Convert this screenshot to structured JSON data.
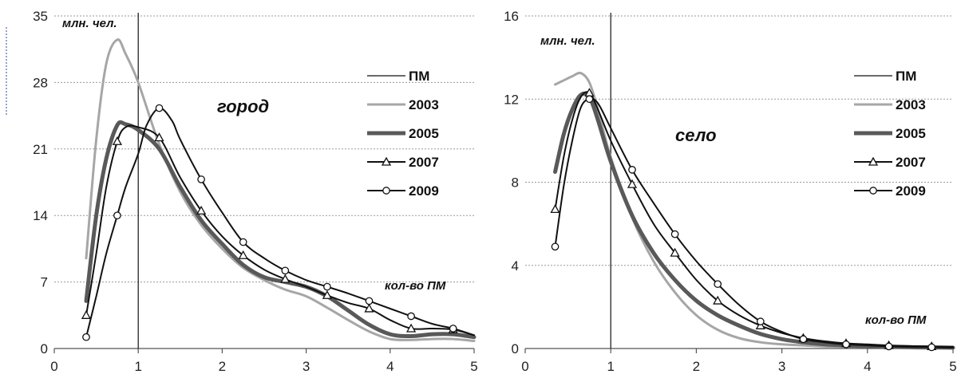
{
  "chart_data": [
    {
      "type": "line",
      "region_label": "город",
      "ylabel": "млн. чел.",
      "xlabel": "кол-во ПМ",
      "xlim": [
        0,
        5
      ],
      "ylim": [
        0,
        35
      ],
      "xticks": [
        "0",
        "1",
        "2",
        "3",
        "4",
        "5"
      ],
      "yticks": [
        "0",
        "7",
        "14",
        "21",
        "28",
        "35"
      ],
      "grid": "horizontal dotted",
      "legend_position": "right",
      "reference_line": {
        "name": "ПМ",
        "x": 1
      },
      "series": [
        {
          "name": "2003",
          "color": "#a6a6a6",
          "width": 3,
          "marker": "none",
          "x": [
            0.38,
            0.5,
            0.62,
            0.75,
            0.85,
            1.0,
            1.25,
            1.5,
            1.75,
            2.0,
            2.25,
            2.5,
            2.75,
            3.0,
            3.25,
            3.5,
            3.75,
            4.0,
            4.25,
            4.5,
            4.75,
            5.0
          ],
          "y": [
            9.5,
            22.0,
            30.0,
            32.5,
            31.0,
            28.0,
            21.5,
            16.5,
            13.0,
            10.5,
            8.5,
            7.2,
            6.2,
            5.5,
            4.3,
            3.0,
            1.8,
            1.0,
            0.9,
            1.0,
            1.0,
            0.8
          ]
        },
        {
          "name": "2005",
          "color": "#595959",
          "width": 5,
          "marker": "none",
          "x": [
            0.38,
            0.5,
            0.62,
            0.75,
            0.85,
            1.0,
            1.25,
            1.5,
            1.75,
            2.0,
            2.25,
            2.5,
            2.75,
            3.0,
            3.25,
            3.5,
            3.75,
            4.0,
            4.25,
            4.5,
            4.75,
            5.0
          ],
          "y": [
            5.0,
            14.0,
            20.0,
            23.5,
            23.6,
            23.0,
            21.0,
            17.0,
            13.5,
            11.0,
            8.8,
            7.5,
            7.0,
            6.5,
            5.5,
            4.0,
            2.5,
            1.5,
            1.3,
            1.5,
            1.5,
            1.2
          ]
        },
        {
          "name": "2007",
          "color": "#111111",
          "width": 2,
          "marker": "triangle",
          "x": [
            0.38,
            0.5,
            0.62,
            0.75,
            0.85,
            1.0,
            1.25,
            1.5,
            1.75,
            2.0,
            2.25,
            2.5,
            2.75,
            3.0,
            3.25,
            3.5,
            3.75,
            4.0,
            4.25,
            4.5,
            4.75,
            5.0
          ],
          "y": [
            3.5,
            10.0,
            17.0,
            21.8,
            23.3,
            23.3,
            22.2,
            18.0,
            14.5,
            11.8,
            9.8,
            8.3,
            7.3,
            6.5,
            5.6,
            4.8,
            4.2,
            3.0,
            2.1,
            2.1,
            2.0,
            1.4
          ],
          "markers_x": [
            0.38,
            0.75,
            1.25,
            1.75,
            2.25,
            2.75,
            3.25,
            3.75,
            4.25,
            4.75
          ],
          "markers_y": [
            3.5,
            21.8,
            22.2,
            14.5,
            9.8,
            7.3,
            5.6,
            4.2,
            2.1,
            2.0
          ]
        },
        {
          "name": "2009",
          "color": "#111111",
          "width": 2,
          "marker": "circle",
          "x": [
            0.38,
            0.5,
            0.62,
            0.75,
            0.85,
            1.0,
            1.1,
            1.25,
            1.4,
            1.5,
            1.75,
            2.0,
            2.25,
            2.5,
            2.75,
            3.0,
            3.25,
            3.5,
            3.75,
            4.0,
            4.25,
            4.5,
            4.75,
            5.0
          ],
          "y": [
            1.2,
            5.5,
            10.0,
            14.0,
            17.0,
            20.5,
            23.5,
            25.3,
            24.0,
            22.0,
            17.8,
            14.3,
            11.2,
            9.5,
            8.2,
            7.2,
            6.5,
            5.8,
            5.0,
            4.2,
            3.4,
            2.6,
            2.1,
            1.4
          ],
          "markers_x": [
            0.38,
            0.75,
            1.25,
            1.75,
            2.25,
            2.75,
            3.25,
            3.75,
            4.25,
            4.75
          ],
          "markers_y": [
            1.2,
            14.0,
            25.3,
            17.8,
            11.2,
            8.2,
            6.5,
            5.0,
            3.4,
            2.1
          ]
        }
      ]
    },
    {
      "type": "line",
      "region_label": "село",
      "ylabel": "млн. чел.",
      "xlabel": "кол-во ПМ",
      "xlim": [
        0,
        5
      ],
      "ylim": [
        0,
        16
      ],
      "xticks": [
        "0",
        "1",
        "2",
        "3",
        "4",
        "5"
      ],
      "yticks": [
        "0",
        "4",
        "8",
        "12",
        "16"
      ],
      "grid": "horizontal dotted",
      "legend_position": "right",
      "reference_line": {
        "name": "ПМ",
        "x": 1
      },
      "series": [
        {
          "name": "2003",
          "color": "#a6a6a6",
          "width": 3,
          "marker": "none",
          "x": [
            0.35,
            0.45,
            0.55,
            0.65,
            0.75,
            0.85,
            1.0,
            1.25,
            1.5,
            1.75,
            2.0,
            2.25,
            2.5,
            2.75,
            3.0,
            3.25,
            3.5,
            3.75,
            4.0,
            4.25,
            4.5,
            4.75,
            5.0
          ],
          "y": [
            12.7,
            12.9,
            13.1,
            13.25,
            12.8,
            11.5,
            9.2,
            6.3,
            4.2,
            2.7,
            1.6,
            0.9,
            0.5,
            0.3,
            0.2,
            0.15,
            0.1,
            0.08,
            0.06,
            0.05,
            0.04,
            0.03,
            0.02
          ]
        },
        {
          "name": "2005",
          "color": "#595959",
          "width": 5,
          "marker": "none",
          "x": [
            0.35,
            0.45,
            0.55,
            0.65,
            0.75,
            0.85,
            1.0,
            1.25,
            1.5,
            1.75,
            2.0,
            2.25,
            2.5,
            2.75,
            3.0,
            3.25,
            3.5,
            3.75,
            4.0,
            4.25,
            4.5,
            4.75,
            5.0
          ],
          "y": [
            8.5,
            10.3,
            11.5,
            12.2,
            12.1,
            11.0,
            9.0,
            6.4,
            4.6,
            3.3,
            2.3,
            1.6,
            1.1,
            0.7,
            0.45,
            0.3,
            0.2,
            0.15,
            0.1,
            0.08,
            0.06,
            0.05,
            0.04
          ]
        },
        {
          "name": "2007",
          "color": "#111111",
          "width": 2,
          "marker": "triangle",
          "x": [
            0.35,
            0.45,
            0.55,
            0.65,
            0.75,
            0.85,
            1.0,
            1.25,
            1.5,
            1.75,
            2.0,
            2.25,
            2.5,
            2.75,
            3.0,
            3.25,
            3.5,
            3.75,
            4.0,
            4.25,
            4.5,
            4.75,
            5.0
          ],
          "y": [
            6.7,
            9.2,
            11.0,
            12.1,
            12.3,
            11.5,
            10.0,
            7.9,
            6.0,
            4.6,
            3.3,
            2.3,
            1.6,
            1.1,
            0.75,
            0.5,
            0.35,
            0.25,
            0.2,
            0.15,
            0.12,
            0.1,
            0.08
          ],
          "markers_x": [
            0.35,
            0.75,
            1.25,
            1.75,
            2.25,
            2.75,
            3.25,
            3.75,
            4.25,
            4.75
          ],
          "markers_y": [
            6.7,
            12.3,
            7.9,
            4.6,
            2.3,
            1.1,
            0.5,
            0.25,
            0.15,
            0.1
          ]
        },
        {
          "name": "2009",
          "color": "#111111",
          "width": 2,
          "marker": "circle",
          "x": [
            0.35,
            0.45,
            0.55,
            0.65,
            0.75,
            0.85,
            1.0,
            1.25,
            1.5,
            1.75,
            2.0,
            2.25,
            2.5,
            2.75,
            3.0,
            3.25,
            3.5,
            3.75,
            4.0,
            4.25,
            4.5,
            4.75,
            5.0
          ],
          "y": [
            4.9,
            7.8,
            10.0,
            11.6,
            12.0,
            11.8,
            10.6,
            8.6,
            7.0,
            5.5,
            4.2,
            3.1,
            2.1,
            1.3,
            0.8,
            0.45,
            0.3,
            0.2,
            0.15,
            0.1,
            0.08,
            0.06,
            0.04
          ],
          "markers_x": [
            0.35,
            0.75,
            1.25,
            1.75,
            2.25,
            2.75,
            3.25,
            3.75,
            4.25,
            4.75
          ],
          "markers_y": [
            4.9,
            12.0,
            8.6,
            5.5,
            3.1,
            1.3,
            0.45,
            0.2,
            0.1,
            0.06
          ]
        }
      ]
    }
  ]
}
